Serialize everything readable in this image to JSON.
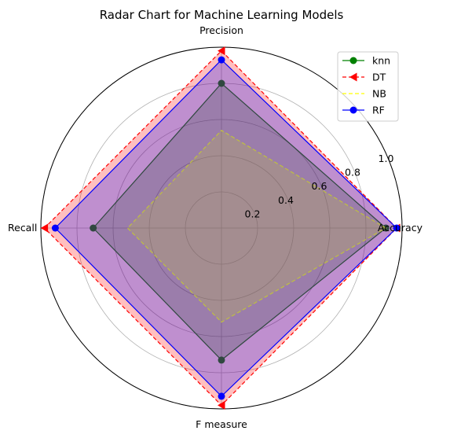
{
  "chart_data": {
    "type": "radar",
    "title": "Radar Chart for Machine Learning Models",
    "categories": [
      "Accuracy",
      "Precision",
      "Recall",
      "F measure"
    ],
    "rlim": [
      0,
      1.0
    ],
    "rticks": [
      0.2,
      0.4,
      0.6,
      0.8,
      1.0
    ],
    "rtick_labels": [
      "0.2",
      "0.4",
      "0.6",
      "0.8",
      "1.0"
    ],
    "grid": true,
    "legend_position": "top-right",
    "series": [
      {
        "name": "knn",
        "values": [
          0.91,
          0.8,
          0.71,
          0.73
        ],
        "color": "#008000",
        "linestyle": "solid",
        "marker": "circle",
        "fill": "#008000",
        "fill_opacity": 0.25
      },
      {
        "name": "DT",
        "values": [
          0.97,
          0.98,
          0.98,
          0.98
        ],
        "color": "#ff0000",
        "linestyle": "dashed",
        "marker": "triangle-left",
        "fill": "#ff0000",
        "fill_opacity": 0.25
      },
      {
        "name": "NB",
        "values": [
          0.91,
          0.54,
          0.52,
          0.52
        ],
        "color": "#ffff00",
        "linestyle": "dashed",
        "marker": "none",
        "fill": "#ffff00",
        "fill_opacity": 0.25
      },
      {
        "name": "RF",
        "values": [
          0.97,
          0.93,
          0.92,
          0.93
        ],
        "color": "#0000ff",
        "linestyle": "solid",
        "marker": "circle",
        "fill": "#0000ff",
        "fill_opacity": 0.25
      }
    ]
  }
}
